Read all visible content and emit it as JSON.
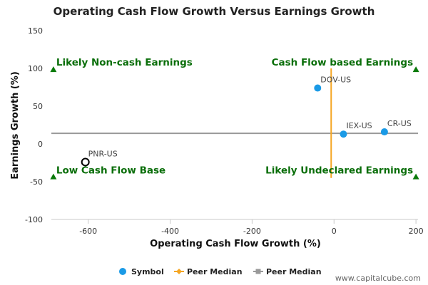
{
  "chart_data": {
    "type": "scatter",
    "title": "Operating Cash Flow Growth Versus Earnings Growth",
    "xlabel": "Operating Cash Flow Growth (%)",
    "ylabel": "Earnings Growth (%)",
    "xlim": [
      -690,
      205
    ],
    "ylim": [
      -100,
      150
    ],
    "xticks": [
      -600,
      -400,
      -200,
      0,
      200
    ],
    "yticks": [
      -100,
      -50,
      0,
      50,
      100,
      150
    ],
    "series": [
      {
        "name": "Symbol",
        "color": "#1a9ae6",
        "points": [
          {
            "label": "DOV-US",
            "x": -40,
            "y": 74
          },
          {
            "label": "IEX-US",
            "x": 23,
            "y": 13
          },
          {
            "label": "CR-US",
            "x": 123,
            "y": 16
          }
        ]
      }
    ],
    "highlight_point": {
      "label": "PNR-US",
      "x": -607,
      "y": -24,
      "style": "hollow-black"
    },
    "peer_median_vertical": {
      "name": "Peer Median",
      "x": -7,
      "y_range": [
        -45,
        100
      ],
      "color": "#f5a623"
    },
    "peer_median_horizontal": {
      "name": "Peer Median",
      "y": 14,
      "color": "#999999"
    },
    "quadrant_labels": [
      {
        "text": "Likely Non-cash Earnings",
        "position": "top-left",
        "marker_x": -685,
        "marker_y": 98
      },
      {
        "text": "Cash Flow based Earnings",
        "position": "top-right",
        "marker_x": 200,
        "marker_y": 98
      },
      {
        "text": "Low Cash Flow Base",
        "position": "bottom-left",
        "marker_x": -685,
        "marker_y": -44
      },
      {
        "text": "Likely Undeclared Earnings",
        "position": "bottom-right",
        "marker_x": 200,
        "marker_y": -44
      }
    ],
    "quadrant_marker_color": "#0a7a0a",
    "legend": {
      "placement": "bottom-center",
      "items": [
        {
          "name": "Symbol",
          "kind": "circle",
          "color": "#1a9ae6"
        },
        {
          "name": "Peer Median",
          "kind": "diamond-line",
          "color": "#f5a623"
        },
        {
          "name": "Peer Median",
          "kind": "square-line",
          "color": "#999999"
        }
      ]
    },
    "grid": false
  },
  "credit": "www.capitalcube.com"
}
